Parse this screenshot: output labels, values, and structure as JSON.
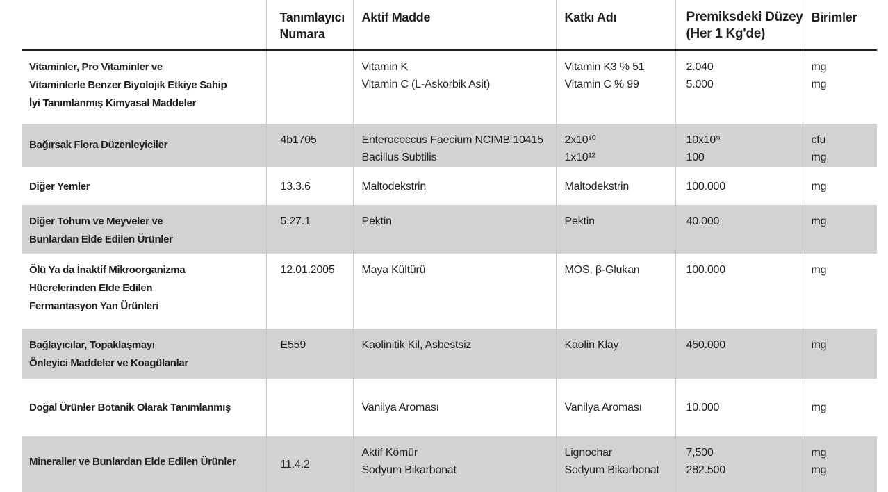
{
  "colors": {
    "row_shade": "#d2d2d2",
    "header_rule": "#1f1f1f",
    "grid_line": "#c6c6c6",
    "text": "#231f20"
  },
  "table": {
    "columns": [
      {
        "label": ""
      },
      {
        "label": "Tanımlayıcı\nNumara"
      },
      {
        "label": "Aktif Madde"
      },
      {
        "label": "Katkı Adı"
      },
      {
        "label": "Premiksdeki Düzey\n(Her 1 Kg'de)"
      },
      {
        "label": "Birimler"
      }
    ],
    "rows": [
      {
        "category": "Vitaminler, Pro Vitaminler ve\nVitaminlerle Benzer Biyolojik Etkiye Sahip\nİyi Tanımlanmış Kimyasal Maddeler",
        "id": "",
        "active": [
          "Vitamin K",
          "Vitamin C (L-Askorbik Asit)"
        ],
        "additive": [
          "Vitamin K3 % 51",
          "Vitamin C % 99"
        ],
        "level": [
          "2.040",
          "5.000"
        ],
        "units": [
          "mg",
          "mg"
        ],
        "shaded": false
      },
      {
        "category": "Bağırsak Flora Düzenleyiciler",
        "id": "4b1705",
        "active": [
          "Enterococcus Faecium NCIMB 10415",
          "Bacillus Subtilis"
        ],
        "additive": [
          "2x10¹⁰",
          "1x10¹²"
        ],
        "level": [
          "10x10⁹",
          "100"
        ],
        "units": [
          "cfu",
          "mg"
        ],
        "shaded": true
      },
      {
        "category": "Diğer Yemler",
        "id": "13.3.6",
        "active": [
          "Maltodekstrin"
        ],
        "additive": [
          "Maltodekstrin"
        ],
        "level": [
          "100.000"
        ],
        "units": [
          "mg"
        ],
        "shaded": false
      },
      {
        "category": "Diğer Tohum ve Meyveler ve\nBunlardan Elde Edilen Ürünler",
        "id": "5.27.1",
        "active": [
          "Pektin"
        ],
        "additive": [
          "Pektin"
        ],
        "level": [
          "40.000"
        ],
        "units": [
          "mg"
        ],
        "shaded": true
      },
      {
        "category": "Ölü Ya da İnaktif Mikroorganizma\nHücrelerinden Elde Edilen\nFermantasyon Yan Ürünleri",
        "id": "12.01.2005",
        "active": [
          "Maya Kültürü"
        ],
        "additive": [
          "MOS, β-Glukan"
        ],
        "level": [
          "100.000"
        ],
        "units": [
          "mg"
        ],
        "shaded": false
      },
      {
        "category": "Bağlayıcılar, Topaklaşmayı\nÖnleyici Maddeler ve Koagülanlar",
        "id": "E559",
        "active": [
          "Kaolinitik Kil, Asbestsiz"
        ],
        "additive": [
          "Kaolin Klay"
        ],
        "level": [
          "450.000"
        ],
        "units": [
          "mg"
        ],
        "shaded": true
      },
      {
        "category": "Doğal Ürünler Botanik Olarak Tanımlanmış",
        "id": "",
        "active": [
          "Vanilya Aroması"
        ],
        "additive": [
          "Vanilya Aroması"
        ],
        "level": [
          "10.000"
        ],
        "units": [
          "mg"
        ],
        "shaded": false
      },
      {
        "category": "Mineraller ve Bunlardan Elde Edilen Ürünler",
        "id": "11.4.2",
        "active": [
          "Aktif Kömür",
          "Sodyum Bikarbonat"
        ],
        "additive": [
          "Lignochar",
          "Sodyum Bikarbonat"
        ],
        "level": [
          "7,500",
          "282.500"
        ],
        "units": [
          "mg",
          "mg"
        ],
        "shaded": true
      }
    ]
  }
}
